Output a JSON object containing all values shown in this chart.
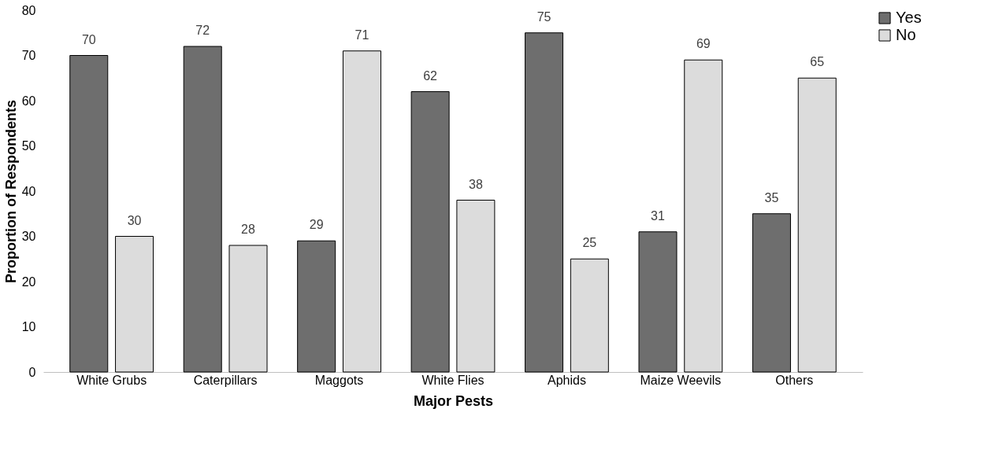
{
  "chart_data": {
    "type": "bar",
    "xlabel": "Major Pests",
    "ylabel": "Proportion of Respondents",
    "categories": [
      "White Grubs",
      "Caterpillars",
      "Maggots",
      "White Flies",
      "Aphids",
      "Maize Weevils",
      "Others"
    ],
    "series": [
      {
        "name": "Yes",
        "color": "#6e6e6e",
        "values": [
          70,
          72,
          29,
          62,
          75,
          31,
          35
        ]
      },
      {
        "name": "No",
        "color": "#dcdcdc",
        "values": [
          30,
          28,
          71,
          38,
          25,
          69,
          65
        ]
      }
    ],
    "ylim": [
      0,
      80
    ],
    "yticks": [
      0,
      10,
      20,
      30,
      40,
      50,
      60,
      70,
      80
    ],
    "grid": false,
    "legend": "right",
    "data_labels": true
  }
}
